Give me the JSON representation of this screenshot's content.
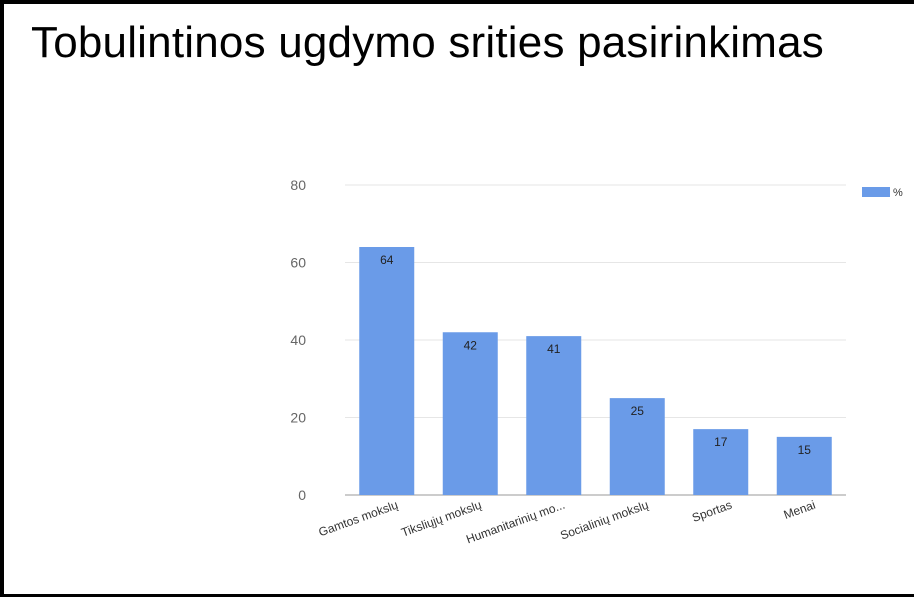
{
  "page": {
    "title": "Tobulintinos ugdymo srities pasirinkimas"
  },
  "chart_data": {
    "type": "bar",
    "title": "",
    "xlabel": "",
    "ylabel": "",
    "categories": [
      "Gamtos mokslų",
      "Tiksliųjų mokslų",
      "Humanitarinių mo...",
      "Socialinių mokslų",
      "Sportas",
      "Menai"
    ],
    "series": [
      {
        "name": "%",
        "values": [
          64,
          42,
          41,
          25,
          17,
          15
        ],
        "color": "#6a9be8"
      }
    ],
    "data_labels": [
      "64",
      "42",
      "41",
      "25",
      "17",
      "15"
    ],
    "ylim": [
      0,
      80
    ],
    "yticks": [
      0,
      20,
      40,
      60,
      80
    ],
    "grid": true,
    "legend": "top-right"
  }
}
